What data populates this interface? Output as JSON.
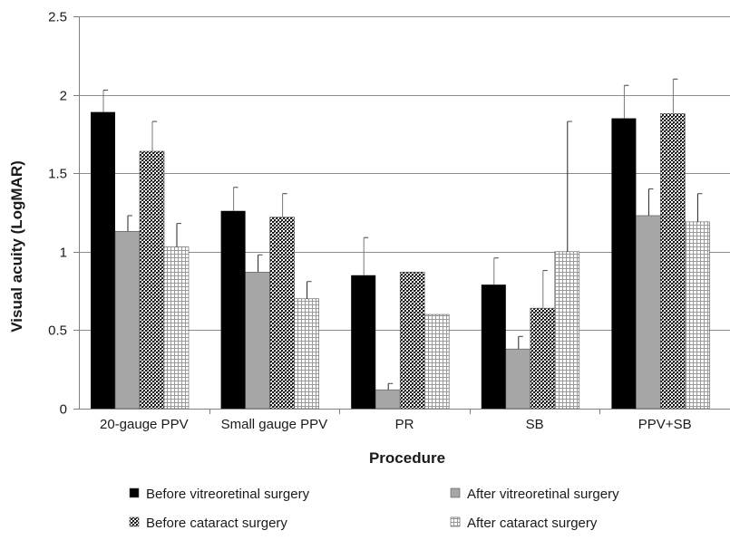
{
  "chart_data": {
    "type": "bar",
    "xlabel": "Procedure",
    "ylabel": "Visual acuity (LogMAR)",
    "ylim": [
      0,
      2.5
    ],
    "yticks": [
      "0",
      "0.5",
      "1",
      "1.5",
      "2",
      "2.5"
    ],
    "grid": true,
    "legend_position": "bottom",
    "categories": [
      "20-gauge PPV",
      "Small gauge PPV",
      "PR",
      "SB",
      "PPV+SB"
    ],
    "series": [
      {
        "name": "Before vitreoretinal surgery",
        "pattern": "solid-black",
        "color": "#000000",
        "values": [
          1.89,
          1.26,
          0.85,
          0.79,
          1.85
        ],
        "errors": [
          0.14,
          0.15,
          0.24,
          0.17,
          0.21
        ]
      },
      {
        "name": "After vitreoretinal surgery",
        "pattern": "solid-gray",
        "color": "#a6a6a6",
        "values": [
          1.13,
          0.87,
          0.12,
          0.38,
          1.23
        ],
        "errors": [
          0.1,
          0.11,
          0.04,
          0.08,
          0.17
        ]
      },
      {
        "name": "Before cataract surgery",
        "pattern": "dense-crosshatch",
        "color": "#2b2b2b",
        "values": [
          1.64,
          1.22,
          0.87,
          0.64,
          1.88
        ],
        "errors": [
          0.19,
          0.15,
          0.0,
          0.24,
          0.22
        ]
      },
      {
        "name": "After cataract surgery",
        "pattern": "light-grid",
        "color": "#bdbdbd",
        "values": [
          1.03,
          0.7,
          0.6,
          1.0,
          1.19
        ],
        "errors": [
          0.15,
          0.11,
          0.0,
          0.83,
          0.18
        ]
      }
    ]
  }
}
